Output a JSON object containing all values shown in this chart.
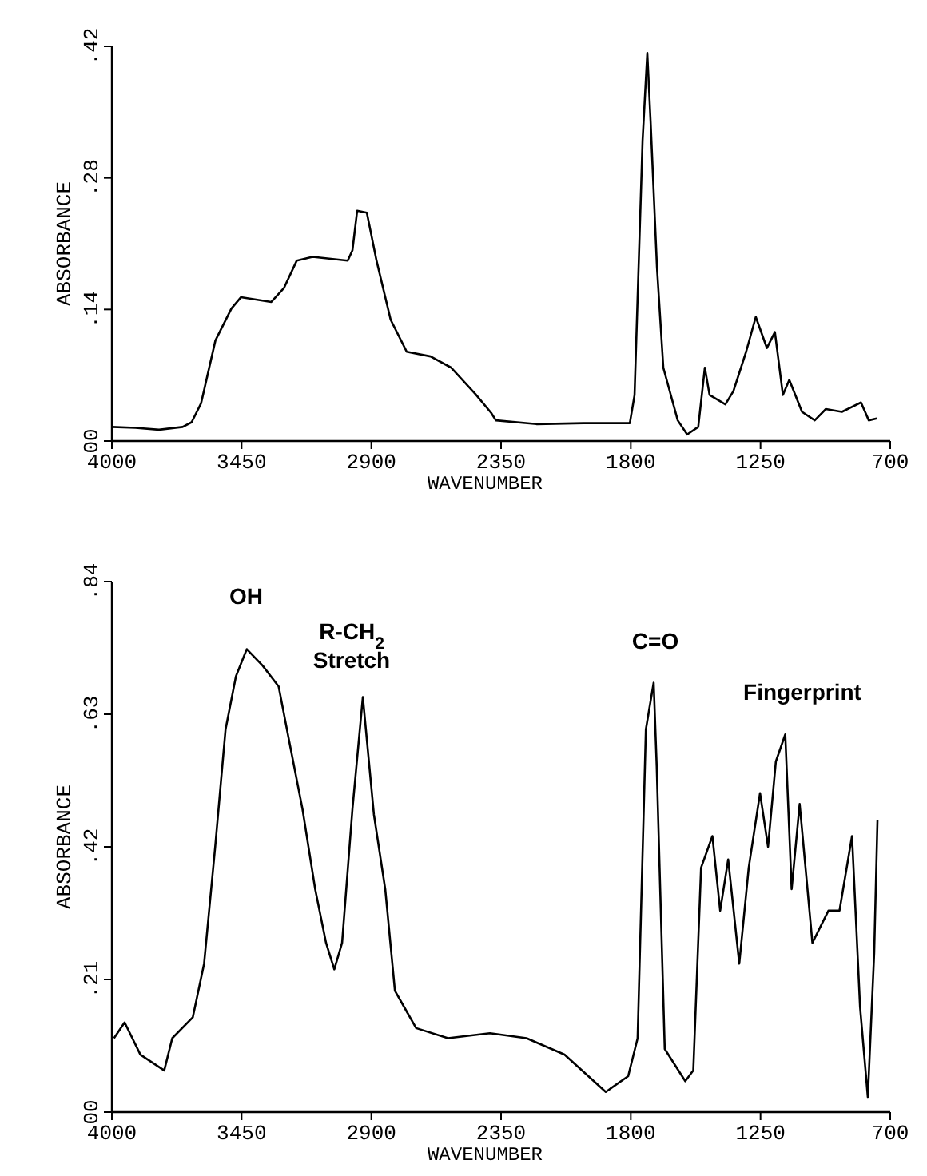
{
  "chart_data": [
    {
      "type": "line",
      "xlabel": "WAVENUMBER",
      "ylabel": "ABSORBANCE",
      "xlim": [
        4000,
        700
      ],
      "xticks": [
        4000,
        3450,
        2900,
        2350,
        1800,
        1250,
        700
      ],
      "ylim": [
        0,
        0.42
      ],
      "yticks": [
        {
          "value": 0,
          "label": "00"
        },
        {
          "value": 0.14,
          "label": ".14"
        },
        {
          "value": 0.28,
          "label": ".28"
        },
        {
          "value": 0.42,
          "label": ".42"
        }
      ],
      "grid": false,
      "series": [
        {
          "color": "#000000",
          "x": [
            4000,
            3900,
            3800,
            3700,
            3662,
            3622,
            3561,
            3493,
            3453,
            3324,
            3270,
            3216,
            3149,
            3000,
            2980,
            2960,
            2919,
            2878,
            2818,
            2750,
            2649,
            2561,
            2459,
            2392,
            2372,
            2200,
            2000,
            1804,
            1784,
            1750,
            1730,
            1716,
            1689,
            1662,
            1601,
            1561,
            1514,
            1486,
            1466,
            1399,
            1365,
            1311,
            1270,
            1223,
            1189,
            1155,
            1128,
            1074,
            1020,
            973,
            905,
            824,
            791,
            757
          ],
          "values": [
            0.015,
            0.014,
            0.012,
            0.015,
            0.02,
            0.04,
            0.107,
            0.141,
            0.153,
            0.148,
            0.163,
            0.192,
            0.196,
            0.192,
            0.203,
            0.245,
            0.243,
            0.192,
            0.129,
            0.095,
            0.09,
            0.078,
            0.05,
            0.03,
            0.022,
            0.018,
            0.019,
            0.019,
            0.049,
            0.32,
            0.413,
            0.34,
            0.185,
            0.078,
            0.022,
            0.007,
            0.015,
            0.078,
            0.049,
            0.039,
            0.053,
            0.095,
            0.132,
            0.099,
            0.116,
            0.049,
            0.065,
            0.031,
            0.022,
            0.034,
            0.031,
            0.041,
            0.022,
            0.024
          ]
        }
      ]
    },
    {
      "type": "line",
      "xlabel": "WAVENUMBER",
      "ylabel": "ABSORBANCE",
      "xlim": [
        4000,
        700
      ],
      "xticks": [
        4000,
        3450,
        2900,
        2350,
        1800,
        1250,
        700
      ],
      "ylim": [
        0,
        0.84
      ],
      "yticks": [
        {
          "value": 0,
          "label": "00"
        },
        {
          "value": 0.21,
          "label": ".21"
        },
        {
          "value": 0.42,
          "label": ".42"
        },
        {
          "value": 0.63,
          "label": ".63"
        },
        {
          "value": 0.84,
          "label": ".84"
        }
      ],
      "grid": false,
      "annotations": [
        "OH",
        "R-CH$_{2}$\nStretch",
        "C=O",
        "Fingerprint"
      ],
      "series": [
        {
          "color": "#000000",
          "x": [
            3991,
            3946,
            3879,
            3778,
            3744,
            3657,
            3609,
            3562,
            3518,
            3474,
            3428,
            3361,
            3293,
            3249,
            3192,
            3138,
            3092,
            3057,
            3024,
            2980,
            2936,
            2889,
            2841,
            2800,
            2710,
            2575,
            2397,
            2242,
            2081,
            1906,
            1811,
            1771,
            1736,
            1703,
            1690,
            1656,
            1569,
            1535,
            1502,
            1454,
            1421,
            1387,
            1340,
            1300,
            1252,
            1218,
            1185,
            1145,
            1118,
            1084,
            1030,
            962,
            915,
            862,
            828,
            795,
            768,
            754
          ],
          "values": [
            0.117,
            0.142,
            0.091,
            0.066,
            0.117,
            0.15,
            0.235,
            0.42,
            0.606,
            0.69,
            0.733,
            0.707,
            0.674,
            0.589,
            0.48,
            0.353,
            0.268,
            0.226,
            0.268,
            0.48,
            0.657,
            0.471,
            0.353,
            0.192,
            0.133,
            0.117,
            0.125,
            0.117,
            0.091,
            0.032,
            0.057,
            0.117,
            0.606,
            0.68,
            0.547,
            0.1,
            0.049,
            0.066,
            0.387,
            0.437,
            0.319,
            0.4,
            0.235,
            0.387,
            0.505,
            0.42,
            0.555,
            0.598,
            0.353,
            0.488,
            0.268,
            0.319,
            0.319,
            0.437,
            0.167,
            0.024,
            0.252,
            0.463
          ]
        }
      ]
    }
  ]
}
